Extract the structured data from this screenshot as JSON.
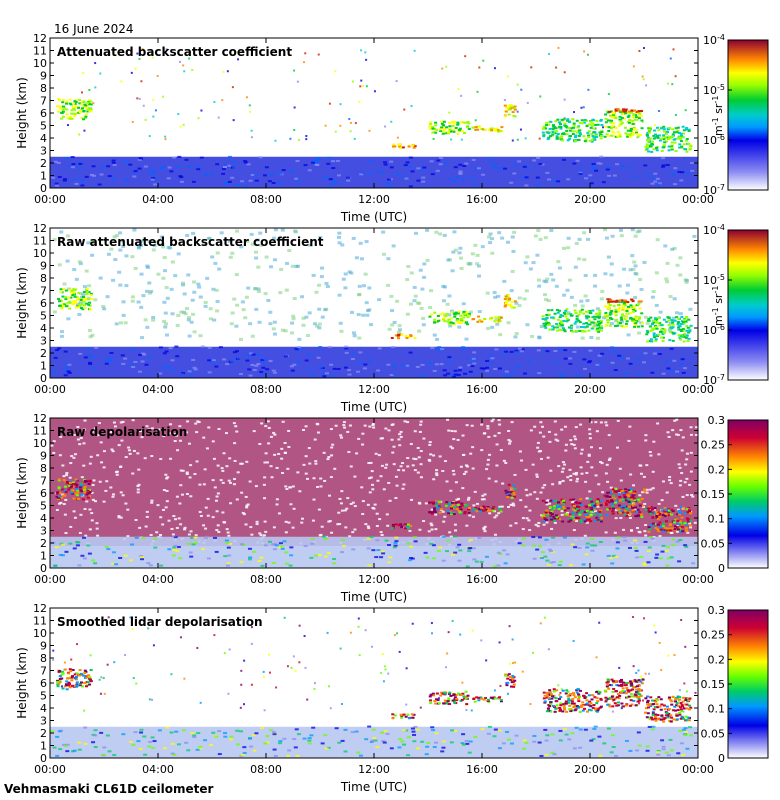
{
  "date": "16 June 2024",
  "footer": "Vehmasmaki CL61D ceilometer",
  "chart_data": [
    {
      "type": "heatmap",
      "title": "Attenuated backscatter coefficient",
      "xlabel": "Time (UTC)",
      "ylabel": "Height (km)",
      "x_ticks": [
        "00:00",
        "04:00",
        "08:00",
        "12:00",
        "16:00",
        "20:00",
        "00:00"
      ],
      "xlim_hours": [
        0,
        24
      ],
      "ylim": [
        0,
        12
      ],
      "y_ticks": [
        0,
        1,
        2,
        3,
        4,
        5,
        6,
        7,
        8,
        9,
        10,
        11,
        12
      ],
      "colorbar": {
        "scale": "log",
        "range": [
          1e-07,
          0.0001
        ],
        "tick_base": "10",
        "tick_exponents": [
          "-7",
          "-6",
          "-5",
          "-4"
        ],
        "unit_parts": [
          "m",
          "-1",
          " sr",
          "-1"
        ],
        "colormap": "jet-like with white-to-blue low end"
      }
    },
    {
      "type": "heatmap",
      "title": "Raw attenuated backscatter coefficient",
      "xlabel": "Time (UTC)",
      "ylabel": "Height (km)",
      "x_ticks": [
        "00:00",
        "04:00",
        "08:00",
        "12:00",
        "16:00",
        "20:00",
        "00:00"
      ],
      "xlim_hours": [
        0,
        24
      ],
      "ylim": [
        0,
        12
      ],
      "y_ticks": [
        0,
        1,
        2,
        3,
        4,
        5,
        6,
        7,
        8,
        9,
        10,
        11,
        12
      ],
      "colorbar": {
        "scale": "log",
        "range": [
          1e-07,
          0.0001
        ],
        "tick_base": "10",
        "tick_exponents": [
          "-7",
          "-6",
          "-5",
          "-4"
        ],
        "unit_parts": [
          "m",
          "-1",
          " sr",
          "-1"
        ],
        "colormap": "jet-like with white-to-blue low end"
      }
    },
    {
      "type": "heatmap",
      "title": "Raw depolarisation",
      "xlabel": "Time (UTC)",
      "ylabel": "Height (km)",
      "x_ticks": [
        "00:00",
        "04:00",
        "08:00",
        "12:00",
        "16:00",
        "20:00",
        "00:00"
      ],
      "xlim_hours": [
        0,
        24
      ],
      "ylim": [
        0,
        12
      ],
      "y_ticks": [
        0,
        1,
        2,
        3,
        4,
        5,
        6,
        7,
        8,
        9,
        10,
        11,
        12
      ],
      "colorbar": {
        "scale": "linear",
        "range": [
          0,
          0.3
        ],
        "ticks": [
          "0",
          "0.05",
          "0.1",
          "0.15",
          "0.2",
          "0.25",
          "0.3"
        ],
        "colormap": "jet-like with white-to-blue low end, purple high end"
      }
    },
    {
      "type": "heatmap",
      "title": "Smoothed lidar depolarisation",
      "xlabel": "Time (UTC)",
      "ylabel": "Height (km)",
      "x_ticks": [
        "00:00",
        "04:00",
        "08:00",
        "12:00",
        "16:00",
        "20:00",
        "00:00"
      ],
      "xlim_hours": [
        0,
        24
      ],
      "ylim": [
        0,
        12
      ],
      "y_ticks": [
        0,
        1,
        2,
        3,
        4,
        5,
        6,
        7,
        8,
        9,
        10,
        11,
        12
      ],
      "colorbar": {
        "scale": "linear",
        "range": [
          0,
          0.3
        ],
        "ticks": [
          "0",
          "0.05",
          "0.1",
          "0.15",
          "0.2",
          "0.25",
          "0.3"
        ],
        "colormap": "jet-like with white-to-blue low end, purple high end"
      }
    }
  ]
}
